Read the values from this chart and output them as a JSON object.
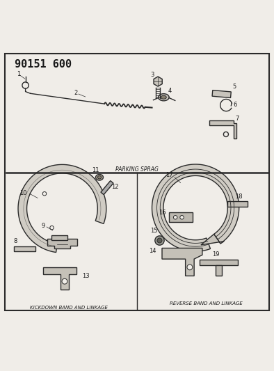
{
  "title": "90151 600",
  "bg_color": "#f0ede8",
  "line_color": "#2a2a2a",
  "text_color": "#1a1a1a",
  "parking_sprag_label": "PARKING SPRAG",
  "kickdown_label": "KICKDOWN BAND AND LINKAGE",
  "reverse_label": "REVERSE BAND AND LINKAGE"
}
